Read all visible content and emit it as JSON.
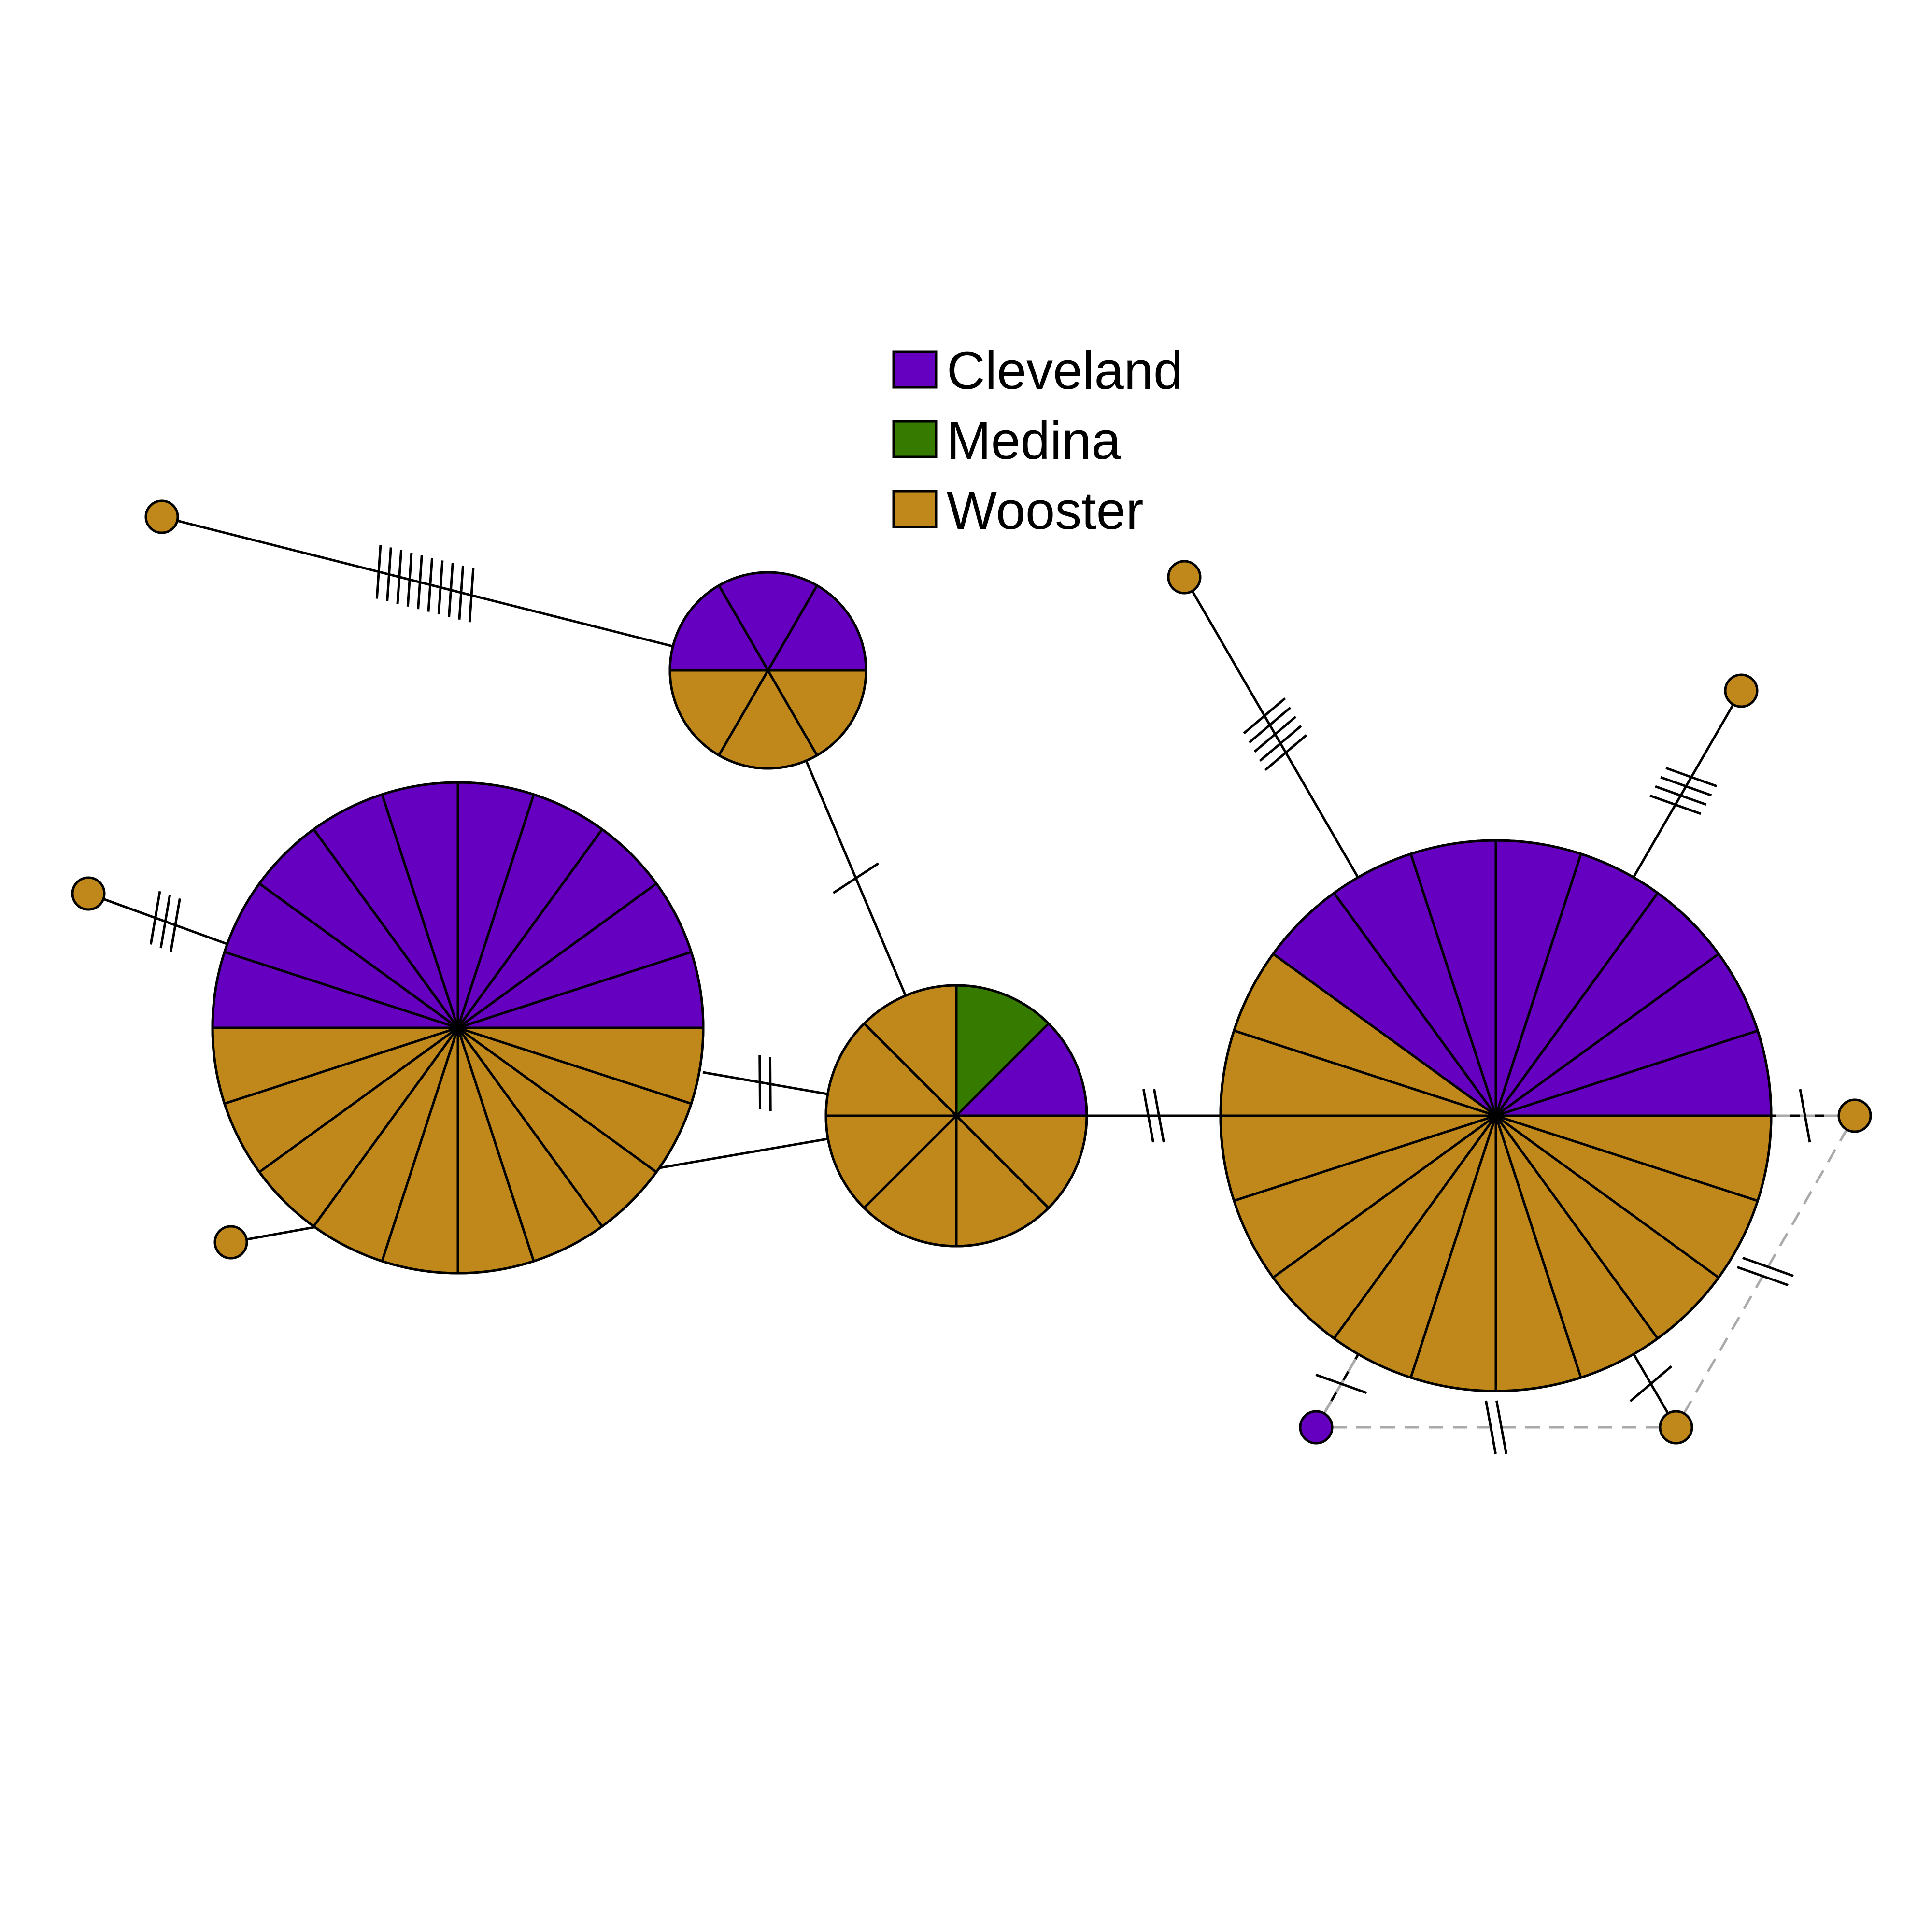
{
  "legend": {
    "items": [
      {
        "label": "Cleveland",
        "color": "#6600C0"
      },
      {
        "label": "Medina",
        "color": "#377A00"
      },
      {
        "label": "Wooster",
        "color": "#C0871A"
      }
    ]
  },
  "network": {
    "haplotypes": [
      {
        "id": "H1",
        "counts": {
          "Cleveland": 0,
          "Medina": 0,
          "Wooster": 1
        }
      },
      {
        "id": "H2",
        "counts": {
          "Cleveland": 3,
          "Medina": 0,
          "Wooster": 3
        }
      },
      {
        "id": "H3",
        "counts": {
          "Cleveland": 0,
          "Medina": 0,
          "Wooster": 1
        }
      },
      {
        "id": "H4",
        "counts": {
          "Cleveland": 0,
          "Medina": 0,
          "Wooster": 1
        }
      },
      {
        "id": "H5",
        "counts": {
          "Cleveland": 10,
          "Medina": 0,
          "Wooster": 10
        }
      },
      {
        "id": "H6",
        "counts": {
          "Cleveland": 1,
          "Medina": 1,
          "Wooster": 6
        }
      },
      {
        "id": "H7",
        "counts": {
          "Cleveland": 0,
          "Medina": 0,
          "Wooster": 1
        }
      },
      {
        "id": "H8",
        "counts": {
          "Cleveland": 0,
          "Medina": 0,
          "Wooster": 1
        }
      },
      {
        "id": "H9",
        "counts": {
          "Cleveland": 8,
          "Medina": 0,
          "Wooster": 12
        }
      },
      {
        "id": "H10",
        "counts": {
          "Cleveland": 0,
          "Medina": 0,
          "Wooster": 1
        }
      },
      {
        "id": "H11",
        "counts": {
          "Cleveland": 1,
          "Medina": 0,
          "Wooster": 0
        }
      },
      {
        "id": "H12",
        "counts": {
          "Cleveland": 0,
          "Medina": 0,
          "Wooster": 1
        }
      }
    ],
    "links": [
      {
        "from": "H1",
        "to": "H2",
        "steps": 10,
        "style": "solid"
      },
      {
        "from": "H2",
        "to": "H6",
        "steps": 1,
        "style": "solid"
      },
      {
        "from": "H3",
        "to": "H5",
        "steps": 3,
        "style": "solid"
      },
      {
        "from": "H4",
        "to": "H5",
        "steps": 0,
        "style": "solid"
      },
      {
        "from": "H5",
        "to": "H6",
        "steps": 2,
        "style": "solid"
      },
      {
        "from": "H5",
        "to": "H6",
        "steps": 0,
        "style": "solid"
      },
      {
        "from": "H6",
        "to": "H9",
        "steps": 2,
        "style": "solid"
      },
      {
        "from": "H7",
        "to": "H9",
        "steps": 5,
        "style": "solid"
      },
      {
        "from": "H8",
        "to": "H9",
        "steps": 4,
        "style": "solid"
      },
      {
        "from": "H9",
        "to": "H10",
        "steps": 1,
        "style": "solid"
      },
      {
        "from": "H9",
        "to": "H11",
        "steps": 1,
        "style": "solid"
      },
      {
        "from": "H9",
        "to": "H12",
        "steps": 1,
        "style": "solid"
      },
      {
        "from": "H11",
        "to": "H12",
        "steps": 2,
        "style": "dashed"
      },
      {
        "from": "H12",
        "to": "H10",
        "steps": 2,
        "style": "dashed"
      },
      {
        "from": "H10",
        "to": "H9",
        "steps": 0,
        "style": "dashed"
      },
      {
        "from": "H11",
        "to": "H9",
        "steps": 0,
        "style": "dashed"
      }
    ]
  }
}
